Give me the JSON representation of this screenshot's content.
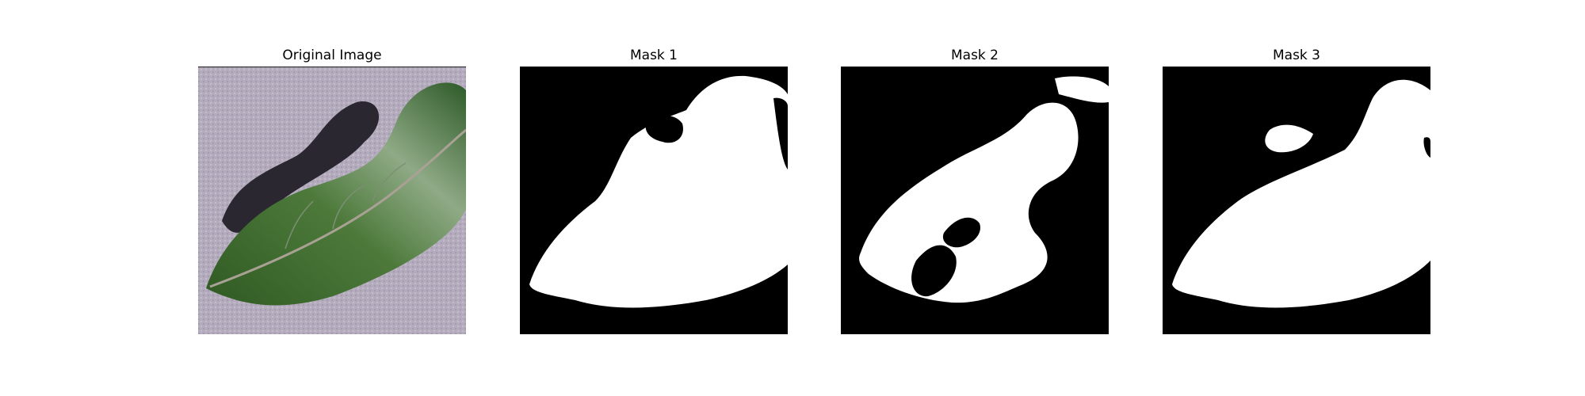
{
  "figure": {
    "panels": [
      {
        "title": "Original Image"
      },
      {
        "title": "Mask 1"
      },
      {
        "title": "Mask 2"
      },
      {
        "title": "Mask 3"
      }
    ]
  },
  "colors": {
    "background": "#ffffff",
    "surface": "#b3aabb",
    "leaf": "#3d6a2d",
    "leaf_highlight": "#9ab38f",
    "shadow": "#2c2830",
    "mask_background": "#000000",
    "mask_foreground": "#ffffff"
  }
}
